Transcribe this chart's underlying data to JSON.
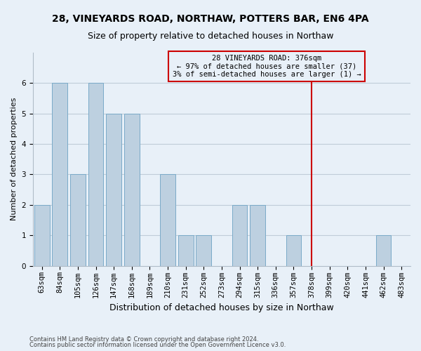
{
  "title_line1": "28, VINEYARDS ROAD, NORTHAW, POTTERS BAR, EN6 4PA",
  "title_line2": "Size of property relative to detached houses in Northaw",
  "xlabel": "Distribution of detached houses by size in Northaw",
  "ylabel": "Number of detached properties",
  "categories": [
    "63sqm",
    "84sqm",
    "105sqm",
    "126sqm",
    "147sqm",
    "168sqm",
    "189sqm",
    "210sqm",
    "231sqm",
    "252sqm",
    "273sqm",
    "294sqm",
    "315sqm",
    "336sqm",
    "357sqm",
    "378sqm",
    "399sqm",
    "420sqm",
    "441sqm",
    "462sqm",
    "483sqm"
  ],
  "values": [
    2,
    6,
    3,
    6,
    5,
    5,
    0,
    3,
    1,
    1,
    0,
    2,
    2,
    0,
    1,
    0,
    0,
    0,
    0,
    1,
    0
  ],
  "bar_color": "#bdd0e0",
  "bar_edge_color": "#7aaac8",
  "subject_line_index": 15,
  "subject_line_color": "#cc0000",
  "annotation_text": "28 VINEYARDS ROAD: 376sqm\n← 97% of detached houses are smaller (37)\n3% of semi-detached houses are larger (1) →",
  "annotation_box_color": "#cc0000",
  "annotation_box_face": "#e8f0f8",
  "ylim": [
    0,
    7
  ],
  "yticks": [
    0,
    1,
    2,
    3,
    4,
    5,
    6
  ],
  "grid_color": "#c0ccd8",
  "background_color": "#e8f0f8",
  "footer_line1": "Contains HM Land Registry data © Crown copyright and database right 2024.",
  "footer_line2": "Contains public sector information licensed under the Open Government Licence v3.0.",
  "title_fontsize": 10,
  "subtitle_fontsize": 9,
  "xlabel_fontsize": 9,
  "ylabel_fontsize": 8,
  "tick_fontsize": 7.5,
  "annotation_fontsize": 7.5,
  "footer_fontsize": 6
}
